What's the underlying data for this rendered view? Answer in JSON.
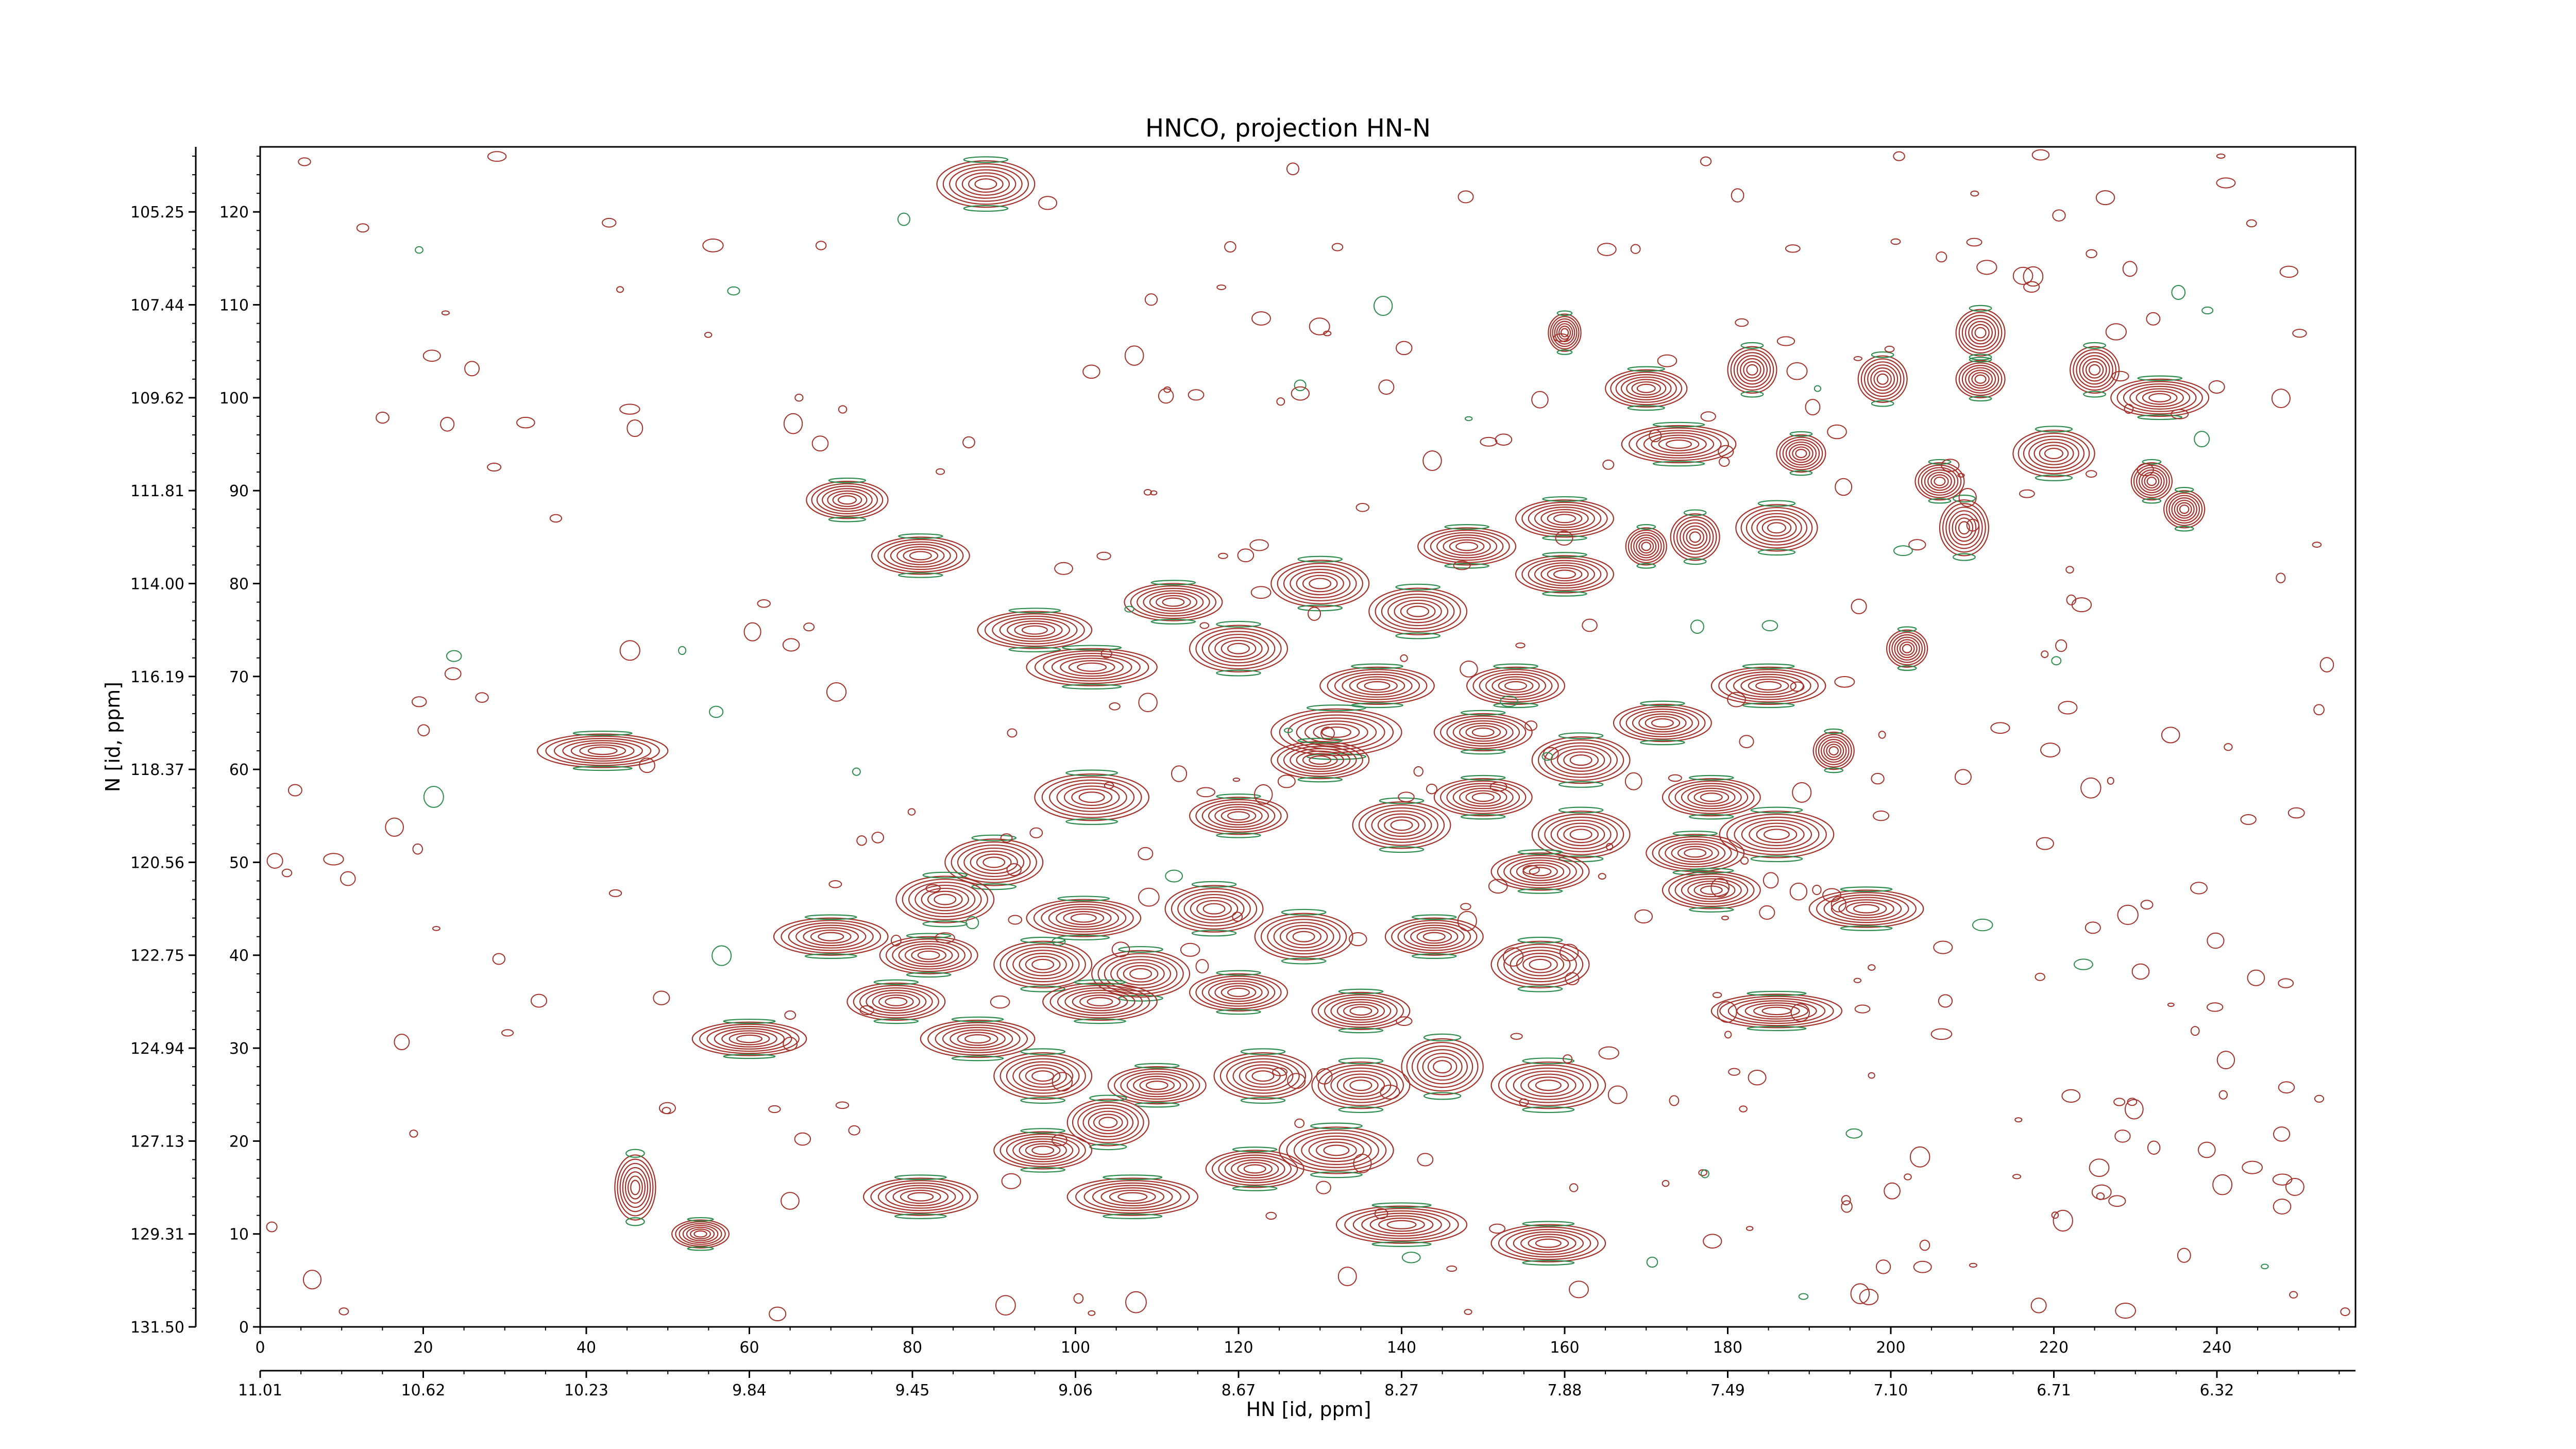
{
  "chart_data": {
    "type": "contour",
    "title": "HNCO, projection HN-N",
    "xlabel": "HN [id, ppm]",
    "ylabel": "N [id, ppm]",
    "x_points": {
      "range": [
        0,
        257
      ],
      "ticks": [
        0,
        20,
        40,
        60,
        80,
        100,
        120,
        140,
        160,
        180,
        200,
        220,
        240
      ],
      "tick_labels": [
        "0",
        "20",
        "40",
        "60",
        "80",
        "100",
        "120",
        "140",
        "160",
        "180",
        "200",
        "220",
        "240"
      ]
    },
    "x_ppm": {
      "range": [
        11.01,
        5.985
      ],
      "tick_labels": [
        "11.01",
        "10.62",
        "10.23",
        "9.84",
        "9.45",
        "9.06",
        "8.67",
        "8.27",
        "7.88",
        "7.49",
        "7.10",
        "6.71",
        "6.32"
      ]
    },
    "y_points": {
      "range": [
        0,
        127
      ],
      "ticks": [
        0,
        10,
        20,
        30,
        40,
        50,
        60,
        70,
        80,
        90,
        100,
        110,
        120
      ],
      "tick_labels": [
        "0",
        "10",
        "20",
        "30",
        "40",
        "50",
        "60",
        "70",
        "80",
        "90",
        "100",
        "110",
        "120"
      ]
    },
    "y_ppm": {
      "range": [
        131.5,
        103.77
      ],
      "tick_labels": [
        "131.50",
        "129.31",
        "127.13",
        "124.94",
        "122.75",
        "120.56",
        "118.37",
        "116.19",
        "114.00",
        "111.81",
        "109.62",
        "107.44",
        "105.25"
      ]
    },
    "colors": {
      "positive": "#a4322a",
      "negative": "#2e8b4e"
    },
    "peaks": [
      [
        89,
        123,
        6,
        2.5
      ],
      [
        42,
        62,
        8,
        1.8
      ],
      [
        72,
        89,
        5,
        2
      ],
      [
        81,
        83,
        6,
        2
      ],
      [
        95,
        75,
        7,
        2
      ],
      [
        102,
        71,
        8,
        2
      ],
      [
        112,
        78,
        6,
        2
      ],
      [
        120,
        73,
        6,
        2.5
      ],
      [
        130,
        80,
        6,
        2.5
      ],
      [
        142,
        77,
        6,
        2.5
      ],
      [
        148,
        84,
        6,
        2
      ],
      [
        160,
        81,
        6,
        2
      ],
      [
        160,
        87,
        6,
        2
      ],
      [
        137,
        69,
        7,
        2
      ],
      [
        154,
        69,
        6,
        2
      ],
      [
        132,
        64,
        8,
        2.5
      ],
      [
        130,
        61,
        6,
        2
      ],
      [
        150,
        64,
        6,
        2
      ],
      [
        162,
        61,
        6,
        2.5
      ],
      [
        172,
        65,
        6,
        2
      ],
      [
        185,
        69,
        7,
        2
      ],
      [
        102,
        57,
        7,
        2.5
      ],
      [
        120,
        55,
        6,
        2
      ],
      [
        140,
        54,
        6,
        2.5
      ],
      [
        150,
        57,
        6,
        2
      ],
      [
        162,
        53,
        6,
        2.5
      ],
      [
        178,
        57,
        6,
        2
      ],
      [
        186,
        53,
        7,
        2.5
      ],
      [
        176,
        51,
        6,
        2
      ],
      [
        157,
        49,
        6,
        2
      ],
      [
        197,
        45,
        7,
        2
      ],
      [
        178,
        47,
        6,
        2
      ],
      [
        90,
        50,
        6,
        2.5
      ],
      [
        84,
        46,
        6,
        2.5
      ],
      [
        101,
        44,
        7,
        2
      ],
      [
        117,
        45,
        6,
        2.5
      ],
      [
        70,
        42,
        7,
        2
      ],
      [
        82,
        40,
        6,
        2
      ],
      [
        96,
        39,
        6,
        2.5
      ],
      [
        108,
        38,
        6,
        2.5
      ],
      [
        128,
        42,
        6,
        2.5
      ],
      [
        144,
        42,
        6,
        2
      ],
      [
        157,
        39,
        6,
        2.5
      ],
      [
        78,
        35,
        6,
        2
      ],
      [
        103,
        35,
        7,
        2
      ],
      [
        120,
        36,
        6,
        2
      ],
      [
        135,
        34,
        6,
        2
      ],
      [
        186,
        34,
        8,
        1.8
      ],
      [
        60,
        31,
        7,
        1.8
      ],
      [
        88,
        31,
        7,
        2
      ],
      [
        96,
        27,
        6,
        2.5
      ],
      [
        110,
        26,
        6,
        2
      ],
      [
        123,
        27,
        6,
        2.5
      ],
      [
        135,
        26,
        6,
        2.5
      ],
      [
        145,
        28,
        5,
        3
      ],
      [
        158,
        26,
        7,
        2.5
      ],
      [
        104,
        22,
        5,
        2.5
      ],
      [
        96,
        19,
        6,
        2
      ],
      [
        132,
        19,
        7,
        2.5
      ],
      [
        122,
        17,
        6,
        2
      ],
      [
        81,
        14,
        7,
        2
      ],
      [
        107,
        14,
        8,
        2
      ],
      [
        140,
        11,
        8,
        2
      ],
      [
        158,
        9,
        7,
        2
      ],
      [
        46,
        15,
        2.5,
        3.5
      ],
      [
        54,
        10,
        3.5,
        1.5
      ],
      [
        174,
        95,
        7,
        2
      ],
      [
        170,
        101,
        5,
        2
      ],
      [
        183,
        103,
        3,
        2.5
      ],
      [
        189,
        94,
        3,
        2
      ],
      [
        199,
        102,
        3,
        2.5
      ],
      [
        206,
        91,
        3,
        2
      ],
      [
        211,
        107,
        3,
        2.5
      ],
      [
        211,
        102,
        3,
        2
      ],
      [
        220,
        94,
        5,
        2.5
      ],
      [
        233,
        100,
        6,
        2
      ],
      [
        225,
        103,
        3,
        2.5
      ],
      [
        202,
        73,
        2.5,
        2
      ],
      [
        193,
        62,
        2.5,
        2
      ],
      [
        209,
        86,
        3,
        3
      ],
      [
        186,
        86,
        5,
        2.5
      ],
      [
        176,
        85,
        3,
        2.5
      ],
      [
        170,
        84,
        2.5,
        2
      ],
      [
        160,
        107,
        2,
        2
      ],
      [
        232,
        91,
        2.5,
        2
      ],
      [
        236,
        88,
        2.5,
        2
      ]
    ]
  }
}
